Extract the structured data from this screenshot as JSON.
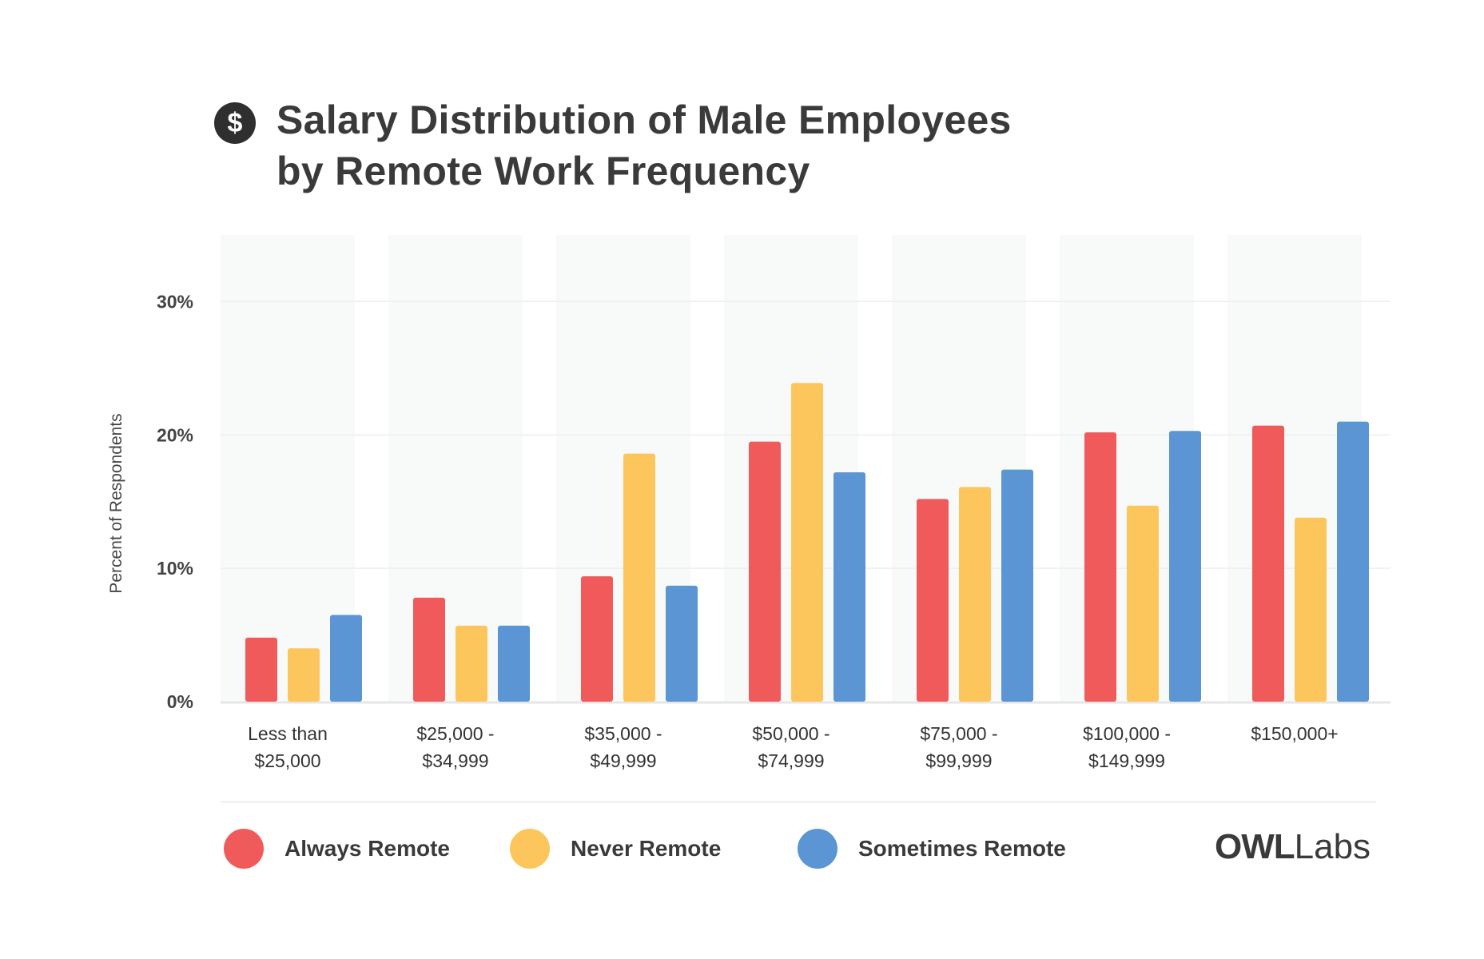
{
  "title": {
    "line1": "Salary Distribution of Male Employees",
    "line2": "by Remote Work Frequency",
    "icon": "dollar-circle-icon",
    "icon_glyph": "$"
  },
  "brand": {
    "owl": "OWL",
    "labs": "Labs"
  },
  "colors": {
    "always": "#f05a5b",
    "never": "#fdc65c",
    "sometimes": "#5b95d3",
    "band": "#f8f9f9",
    "grid": "#eeeeee"
  },
  "chart_data": {
    "type": "bar",
    "title": "Salary Distribution of Male Employees by Remote Work Frequency",
    "xlabel": "",
    "ylabel": "Percent of Respondents",
    "ylim": [
      0,
      35
    ],
    "yticks": [
      0,
      10,
      20,
      30
    ],
    "ytick_labels": [
      "0%",
      "10%",
      "20%",
      "30%"
    ],
    "grid": true,
    "legend_position": "bottom",
    "categories": [
      [
        "Less than",
        "$25,000"
      ],
      [
        "$25,000 -",
        "$34,999"
      ],
      [
        "$35,000 -",
        "$49,999"
      ],
      [
        "$50,000 -",
        "$74,999"
      ],
      [
        "$75,000 -",
        "$99,999"
      ],
      [
        "$100,000 -",
        "$149,999"
      ],
      [
        "$150,000+"
      ]
    ],
    "series": [
      {
        "name": "Always Remote",
        "color": "#f05a5b",
        "values": [
          4.8,
          7.8,
          9.4,
          19.5,
          15.2,
          20.2,
          20.7
        ]
      },
      {
        "name": "Never Remote",
        "color": "#fdc65c",
        "values": [
          4.0,
          5.7,
          18.6,
          23.9,
          16.1,
          14.7,
          13.8
        ]
      },
      {
        "name": "Sometimes Remote",
        "color": "#5b95d3",
        "values": [
          6.5,
          5.7,
          8.7,
          17.2,
          17.4,
          20.3,
          21.0
        ]
      }
    ]
  }
}
